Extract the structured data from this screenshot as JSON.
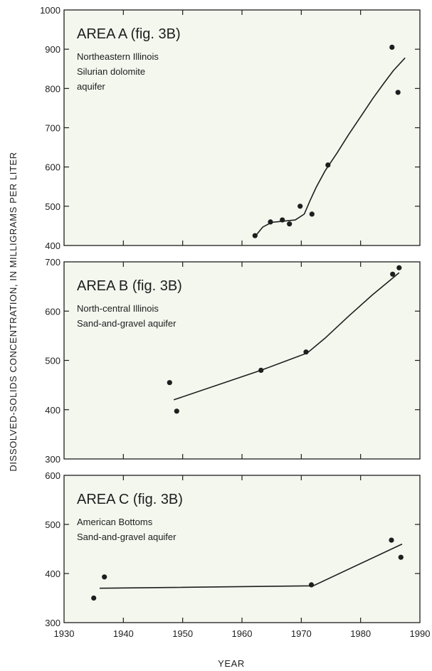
{
  "figure": {
    "ylabel": "DISSOLVED-SOLIDS CONCENTRATION, IN MILLIGRAMS PER LITER",
    "xlabel": "YEAR"
  },
  "chart_data": [
    {
      "type": "scatter",
      "title": "AREA A (fig. 3B)",
      "subtitle_lines": [
        "Northeastern Illinois",
        "Silurian dolomite",
        "aquifer"
      ],
      "xlim": [
        1930,
        1990
      ],
      "ylim": [
        400,
        1000
      ],
      "yticks": [
        400,
        500,
        600,
        700,
        800,
        900,
        1000
      ],
      "x_tick_labels": false,
      "points": [
        {
          "x": 1962.2,
          "y": 425
        },
        {
          "x": 1964.8,
          "y": 460
        },
        {
          "x": 1966.8,
          "y": 465
        },
        {
          "x": 1968.0,
          "y": 455
        },
        {
          "x": 1969.8,
          "y": 500
        },
        {
          "x": 1971.8,
          "y": 480
        },
        {
          "x": 1974.5,
          "y": 605
        },
        {
          "x": 1985.3,
          "y": 905
        },
        {
          "x": 1986.3,
          "y": 790
        }
      ],
      "trend": [
        [
          1962.3,
          425
        ],
        [
          1963.5,
          447
        ],
        [
          1965.0,
          459
        ],
        [
          1967.0,
          462
        ],
        [
          1969.0,
          465
        ],
        [
          1970.5,
          480
        ],
        [
          1971.5,
          515
        ],
        [
          1972.5,
          548
        ],
        [
          1974.0,
          590
        ],
        [
          1976.0,
          635
        ],
        [
          1978.0,
          683
        ],
        [
          1980.0,
          728
        ],
        [
          1982.0,
          773
        ],
        [
          1984.0,
          815
        ],
        [
          1985.5,
          845
        ],
        [
          1987.5,
          878
        ]
      ]
    },
    {
      "type": "scatter",
      "title": "AREA B (fig. 3B)",
      "subtitle_lines": [
        "North-central Illinois",
        "Sand-and-gravel aquifer"
      ],
      "xlim": [
        1930,
        1990
      ],
      "ylim": [
        300,
        700
      ],
      "yticks": [
        300,
        400,
        500,
        600,
        700
      ],
      "x_tick_labels": false,
      "points": [
        {
          "x": 1947.8,
          "y": 455
        },
        {
          "x": 1949.0,
          "y": 397
        },
        {
          "x": 1963.2,
          "y": 480
        },
        {
          "x": 1970.8,
          "y": 517
        },
        {
          "x": 1985.4,
          "y": 675
        },
        {
          "x": 1986.5,
          "y": 688
        }
      ],
      "trend": [
        [
          1948.5,
          420
        ],
        [
          1963.2,
          480
        ],
        [
          1971.0,
          515
        ],
        [
          1974.0,
          545
        ],
        [
          1978.0,
          590
        ],
        [
          1982.0,
          633
        ],
        [
          1984.5,
          658
        ],
        [
          1986.5,
          678
        ]
      ]
    },
    {
      "type": "scatter",
      "title": "AREA C (fig. 3B)",
      "subtitle_lines": [
        "American Bottoms",
        "Sand-and-gravel aquifer"
      ],
      "xlim": [
        1930,
        1990
      ],
      "ylim": [
        300,
        600
      ],
      "yticks": [
        300,
        400,
        500,
        600
      ],
      "x_tick_labels": true,
      "xticks": [
        1930,
        1940,
        1950,
        1960,
        1970,
        1980,
        1990
      ],
      "points": [
        {
          "x": 1935.0,
          "y": 350
        },
        {
          "x": 1936.8,
          "y": 393
        },
        {
          "x": 1971.7,
          "y": 377
        },
        {
          "x": 1985.2,
          "y": 468
        },
        {
          "x": 1986.8,
          "y": 433
        }
      ],
      "trend": [
        [
          1936.0,
          370
        ],
        [
          1972.0,
          375
        ],
        [
          1987.0,
          460
        ]
      ]
    }
  ]
}
